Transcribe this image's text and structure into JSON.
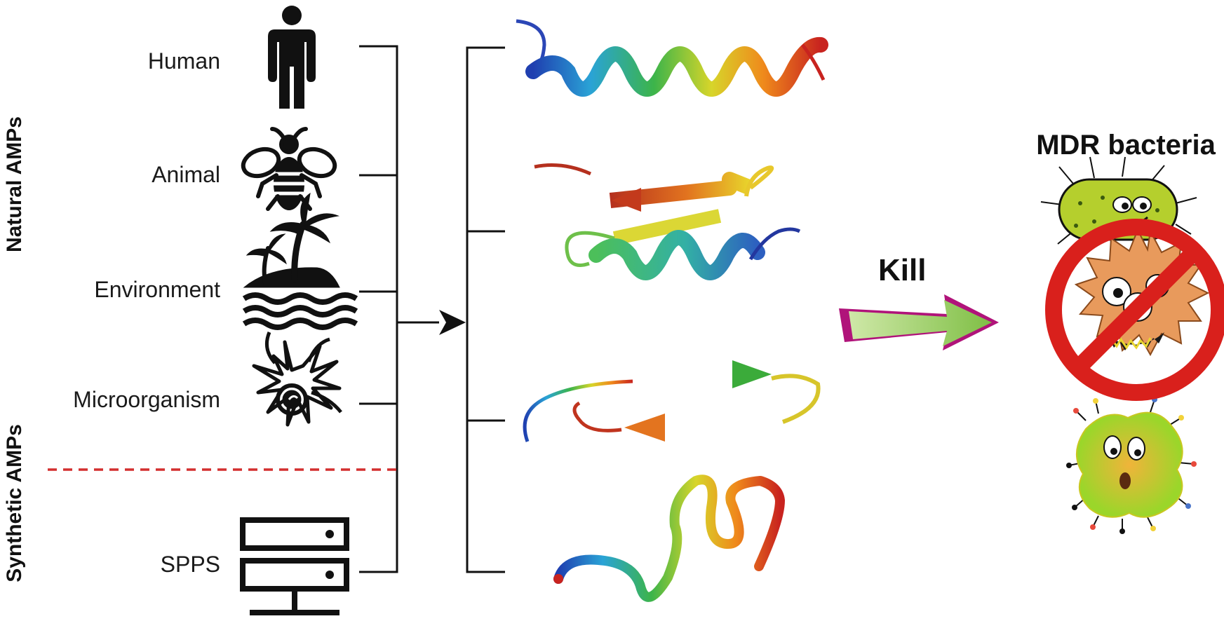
{
  "sidebar": {
    "natural": "Natural AMPs",
    "synthetic": "Synthetic AMPs"
  },
  "sources": [
    {
      "label": "Human",
      "icon": "human-icon"
    },
    {
      "label": "Animal",
      "icon": "bee-icon"
    },
    {
      "label": "Environment",
      "icon": "island-icon"
    },
    {
      "label": "Microorganism",
      "icon": "microbe-icon"
    },
    {
      "label": "SPPS",
      "icon": "server-icon"
    }
  ],
  "structures": [
    "alpha-helix",
    "beta-hairpin-helix",
    "beta-hairpin",
    "random-coil"
  ],
  "action": {
    "label": "Kill"
  },
  "target": {
    "label": "MDR bacteria"
  },
  "colors": {
    "divider": "#d32f2f",
    "no_sign": "#d9201c",
    "arrow_fill": "#a8d86e",
    "arrow_edge": "#b0137a"
  }
}
